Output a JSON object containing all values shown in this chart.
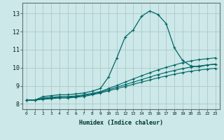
{
  "xlabel": "Humidex (Indice chaleur)",
  "xlim": [
    -0.5,
    23.5
  ],
  "ylim": [
    7.7,
    13.6
  ],
  "xticks": [
    0,
    1,
    2,
    3,
    4,
    5,
    6,
    7,
    8,
    9,
    10,
    11,
    12,
    13,
    14,
    15,
    16,
    17,
    18,
    19,
    20,
    21,
    22,
    23
  ],
  "yticks": [
    8,
    9,
    10,
    11,
    12,
    13
  ],
  "background_color": "#cce8e8",
  "grid_color": "#b0c8c8",
  "line_color": "#006666",
  "curve1_x": [
    0,
    1,
    2,
    3,
    4,
    5,
    6,
    7,
    8,
    9,
    10,
    11,
    12,
    13,
    14,
    15,
    16,
    17,
    18,
    19,
    20,
    21,
    22,
    23
  ],
  "curve1_y": [
    8.2,
    8.2,
    8.4,
    8.45,
    8.5,
    8.5,
    8.55,
    8.6,
    8.7,
    8.85,
    9.5,
    10.55,
    11.7,
    12.1,
    12.85,
    13.15,
    12.95,
    12.45,
    11.1,
    10.4,
    10.1,
    10.05,
    10.15,
    10.2
  ],
  "curve2_x": [
    0,
    1,
    2,
    3,
    4,
    5,
    6,
    7,
    8,
    9,
    10,
    11,
    12,
    13,
    14,
    15,
    16,
    17,
    18,
    19,
    20,
    21,
    22,
    23
  ],
  "curve2_y": [
    8.2,
    8.2,
    8.32,
    8.36,
    8.4,
    8.4,
    8.44,
    8.5,
    8.58,
    8.68,
    8.85,
    9.02,
    9.2,
    9.38,
    9.55,
    9.72,
    9.88,
    10.02,
    10.15,
    10.28,
    10.38,
    10.45,
    10.5,
    10.55
  ],
  "curve3_x": [
    0,
    1,
    2,
    3,
    4,
    5,
    6,
    7,
    8,
    9,
    10,
    11,
    12,
    13,
    14,
    15,
    16,
    17,
    18,
    19,
    20,
    21,
    22,
    23
  ],
  "curve3_y": [
    8.2,
    8.2,
    8.28,
    8.32,
    8.36,
    8.36,
    8.4,
    8.46,
    8.54,
    8.64,
    8.78,
    8.92,
    9.06,
    9.2,
    9.34,
    9.48,
    9.62,
    9.74,
    9.85,
    9.95,
    10.04,
    10.1,
    10.15,
    10.2
  ],
  "curve4_x": [
    0,
    1,
    2,
    3,
    4,
    5,
    6,
    7,
    8,
    9,
    10,
    11,
    12,
    13,
    14,
    15,
    16,
    17,
    18,
    19,
    20,
    21,
    22,
    23
  ],
  "curve4_y": [
    8.2,
    8.2,
    8.25,
    8.28,
    8.32,
    8.32,
    8.36,
    8.41,
    8.5,
    8.6,
    8.72,
    8.84,
    8.96,
    9.08,
    9.2,
    9.32,
    9.44,
    9.54,
    9.64,
    9.73,
    9.81,
    9.87,
    9.92,
    9.97
  ]
}
